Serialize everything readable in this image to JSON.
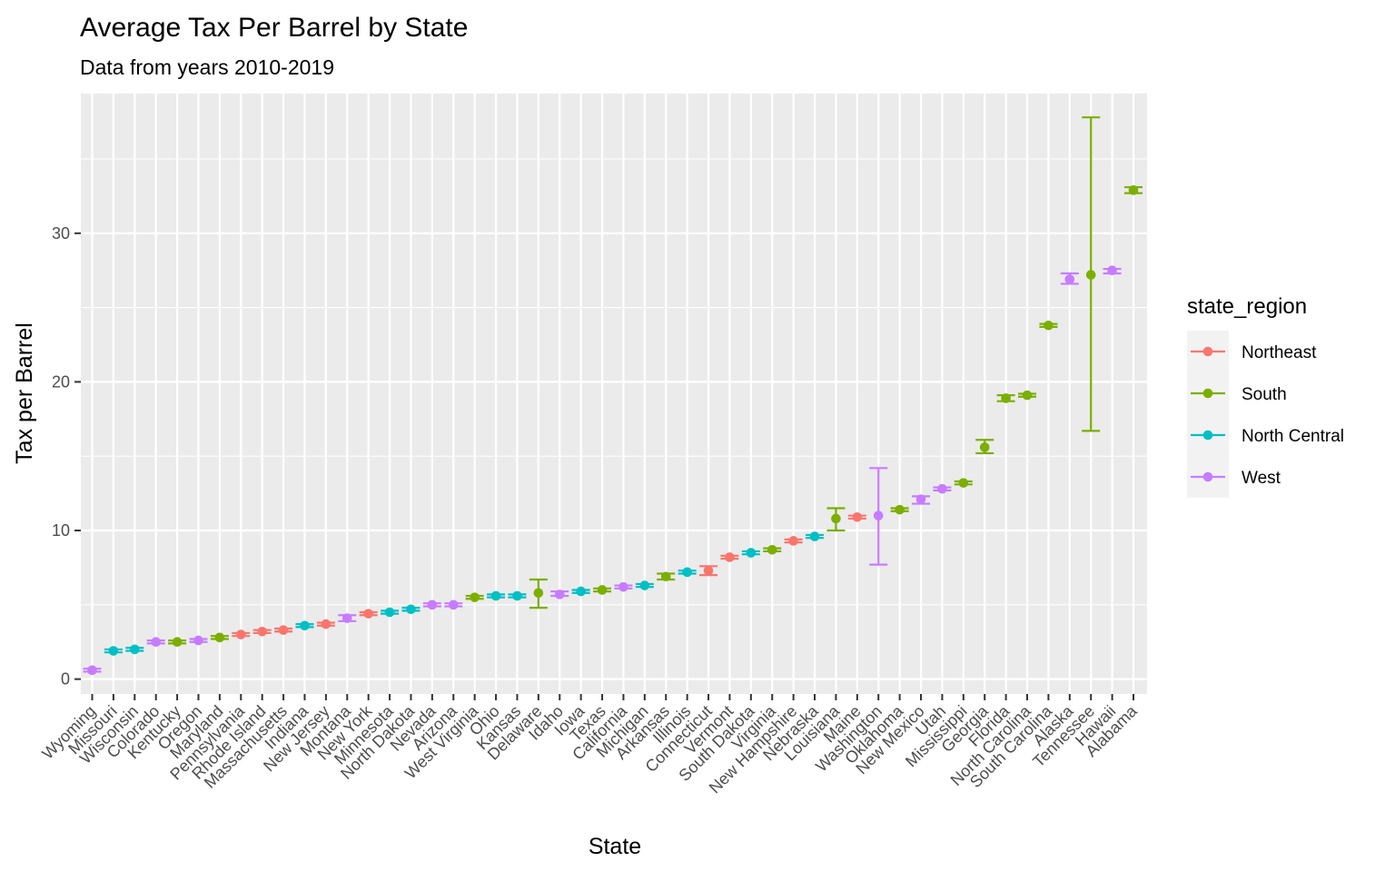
{
  "chart_data": {
    "type": "scatter",
    "title": "Average Tax Per Barrel by State",
    "subtitle": "Data from years 2010-2019",
    "xlabel": "State",
    "ylabel": "Tax per Barrel",
    "ylim": [
      -1.0,
      39.4
    ],
    "yticks": [
      0,
      10,
      20,
      30
    ],
    "grid": true,
    "error_bars": true,
    "legend": {
      "title": "state_region",
      "position": "right",
      "entries": [
        {
          "name": "Northeast",
          "color": "#F8766D"
        },
        {
          "name": "South",
          "color": "#7CAE00"
        },
        {
          "name": "North Central",
          "color": "#00BFC4"
        },
        {
          "name": "West",
          "color": "#C77CFF"
        }
      ]
    },
    "points": [
      {
        "state": "Wyoming",
        "region": "West",
        "value": 0.6,
        "low": 0.5,
        "high": 0.7
      },
      {
        "state": "Missouri",
        "region": "North Central",
        "value": 1.9,
        "low": 1.8,
        "high": 2.0
      },
      {
        "state": "Wisconsin",
        "region": "North Central",
        "value": 2.0,
        "low": 1.9,
        "high": 2.1
      },
      {
        "state": "Colorado",
        "region": "West",
        "value": 2.5,
        "low": 2.4,
        "high": 2.6
      },
      {
        "state": "Kentucky",
        "region": "South",
        "value": 2.5,
        "low": 2.4,
        "high": 2.6
      },
      {
        "state": "Oregon",
        "region": "West",
        "value": 2.6,
        "low": 2.5,
        "high": 2.7
      },
      {
        "state": "Maryland",
        "region": "South",
        "value": 2.8,
        "low": 2.7,
        "high": 2.9
      },
      {
        "state": "Pennsylvania",
        "region": "Northeast",
        "value": 3.0,
        "low": 2.9,
        "high": 3.1
      },
      {
        "state": "Rhode Island",
        "region": "Northeast",
        "value": 3.2,
        "low": 3.1,
        "high": 3.3
      },
      {
        "state": "Massachusetts",
        "region": "Northeast",
        "value": 3.3,
        "low": 3.2,
        "high": 3.4
      },
      {
        "state": "Indiana",
        "region": "North Central",
        "value": 3.6,
        "low": 3.5,
        "high": 3.7
      },
      {
        "state": "New Jersey",
        "region": "Northeast",
        "value": 3.7,
        "low": 3.6,
        "high": 3.8
      },
      {
        "state": "Montana",
        "region": "West",
        "value": 4.1,
        "low": 3.9,
        "high": 4.3
      },
      {
        "state": "New York",
        "region": "Northeast",
        "value": 4.4,
        "low": 4.3,
        "high": 4.5
      },
      {
        "state": "Minnesota",
        "region": "North Central",
        "value": 4.5,
        "low": 4.4,
        "high": 4.6
      },
      {
        "state": "North Dakota",
        "region": "North Central",
        "value": 4.7,
        "low": 4.6,
        "high": 4.8
      },
      {
        "state": "Nevada",
        "region": "West",
        "value": 5.0,
        "low": 4.9,
        "high": 5.1
      },
      {
        "state": "Arizona",
        "region": "West",
        "value": 5.0,
        "low": 4.9,
        "high": 5.1
      },
      {
        "state": "West Virginia",
        "region": "South",
        "value": 5.5,
        "low": 5.4,
        "high": 5.6
      },
      {
        "state": "Ohio",
        "region": "North Central",
        "value": 5.6,
        "low": 5.5,
        "high": 5.7
      },
      {
        "state": "Kansas",
        "region": "North Central",
        "value": 5.6,
        "low": 5.5,
        "high": 5.7
      },
      {
        "state": "Delaware",
        "region": "South",
        "value": 5.8,
        "low": 4.8,
        "high": 6.7
      },
      {
        "state": "Idaho",
        "region": "West",
        "value": 5.7,
        "low": 5.6,
        "high": 5.9
      },
      {
        "state": "Iowa",
        "region": "North Central",
        "value": 5.9,
        "low": 5.8,
        "high": 6.0
      },
      {
        "state": "Texas",
        "region": "South",
        "value": 6.0,
        "low": 5.9,
        "high": 6.1
      },
      {
        "state": "California",
        "region": "West",
        "value": 6.2,
        "low": 6.1,
        "high": 6.3
      },
      {
        "state": "Michigan",
        "region": "North Central",
        "value": 6.3,
        "low": 6.2,
        "high": 6.4
      },
      {
        "state": "Arkansas",
        "region": "South",
        "value": 6.9,
        "low": 6.7,
        "high": 7.1
      },
      {
        "state": "Illinois",
        "region": "North Central",
        "value": 7.2,
        "low": 7.1,
        "high": 7.3
      },
      {
        "state": "Connecticut",
        "region": "Northeast",
        "value": 7.3,
        "low": 7.0,
        "high": 7.6
      },
      {
        "state": "Vermont",
        "region": "Northeast",
        "value": 8.2,
        "low": 8.1,
        "high": 8.3
      },
      {
        "state": "South Dakota",
        "region": "North Central",
        "value": 8.5,
        "low": 8.4,
        "high": 8.6
      },
      {
        "state": "Virginia",
        "region": "South",
        "value": 8.7,
        "low": 8.6,
        "high": 8.8
      },
      {
        "state": "New Hampshire",
        "region": "Northeast",
        "value": 9.3,
        "low": 9.2,
        "high": 9.4
      },
      {
        "state": "Nebraska",
        "region": "North Central",
        "value": 9.6,
        "low": 9.5,
        "high": 9.7
      },
      {
        "state": "Louisiana",
        "region": "South",
        "value": 10.8,
        "low": 10.0,
        "high": 11.5
      },
      {
        "state": "Maine",
        "region": "Northeast",
        "value": 10.9,
        "low": 10.8,
        "high": 11.0
      },
      {
        "state": "Washington",
        "region": "West",
        "value": 11.0,
        "low": 7.7,
        "high": 14.2
      },
      {
        "state": "Oklahoma",
        "region": "South",
        "value": 11.4,
        "low": 11.3,
        "high": 11.5
      },
      {
        "state": "New Mexico",
        "region": "West",
        "value": 12.1,
        "low": 11.8,
        "high": 12.3
      },
      {
        "state": "Utah",
        "region": "West",
        "value": 12.8,
        "low": 12.7,
        "high": 12.9
      },
      {
        "state": "Mississippi",
        "region": "South",
        "value": 13.2,
        "low": 13.1,
        "high": 13.3
      },
      {
        "state": "Georgia",
        "region": "South",
        "value": 15.6,
        "low": 15.2,
        "high": 16.1
      },
      {
        "state": "Florida",
        "region": "South",
        "value": 18.9,
        "low": 18.7,
        "high": 19.1
      },
      {
        "state": "North Carolina",
        "region": "South",
        "value": 19.1,
        "low": 19.0,
        "high": 19.2
      },
      {
        "state": "South Carolina",
        "region": "South",
        "value": 23.8,
        "low": 23.7,
        "high": 23.9
      },
      {
        "state": "Alaska",
        "region": "West",
        "value": 26.9,
        "low": 26.6,
        "high": 27.3
      },
      {
        "state": "Tennessee",
        "region": "South",
        "value": 27.2,
        "low": 16.7,
        "high": 37.8
      },
      {
        "state": "Hawaii",
        "region": "West",
        "value": 27.5,
        "low": 27.3,
        "high": 27.6
      },
      {
        "state": "Alabama",
        "region": "South",
        "value": 32.9,
        "low": 32.7,
        "high": 33.1
      }
    ]
  }
}
